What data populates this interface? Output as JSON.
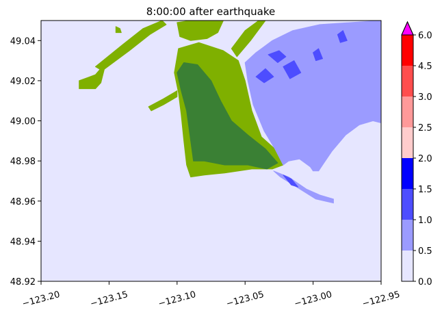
{
  "chart_data": {
    "type": "heatmap",
    "title": "8:00:00 after earthquake",
    "xlabel": "",
    "ylabel": "",
    "xlim": [
      -123.2,
      -122.95
    ],
    "ylim": [
      48.92,
      49.05
    ],
    "x_ticks": [
      {
        "value": -123.2,
        "label": "−123.20"
      },
      {
        "value": -123.15,
        "label": "−123.15"
      },
      {
        "value": -123.1,
        "label": "−123.10"
      },
      {
        "value": -123.05,
        "label": "−123.05"
      },
      {
        "value": -123.0,
        "label": "−123.00"
      },
      {
        "value": -122.95,
        "label": "−122.95"
      }
    ],
    "y_ticks": [
      {
        "value": 48.92,
        "label": "48.92"
      },
      {
        "value": 48.94,
        "label": "48.94"
      },
      {
        "value": 48.96,
        "label": "48.96"
      },
      {
        "value": 48.98,
        "label": "48.98"
      },
      {
        "value": 49.0,
        "label": "49.00"
      },
      {
        "value": 49.02,
        "label": "49.02"
      },
      {
        "value": 49.04,
        "label": "49.04"
      }
    ],
    "colorbar": {
      "levels": [
        0.0,
        0.5,
        1.0,
        1.5,
        2.0,
        2.5,
        3.0,
        4.5,
        6.0
      ],
      "level_labels": [
        "0.0",
        "0.5",
        "1.0",
        "1.5",
        "2.0",
        "2.5",
        "3.0",
        "4.5",
        "6.0"
      ],
      "colors": [
        "#e6e6ff",
        "#9b9bff",
        "#4d4dff",
        "#0000ff",
        "#ffcccc",
        "#ff9999",
        "#ff4d4d",
        "#ff0000"
      ],
      "extend_max_color": "#ff00ff"
    },
    "background_color": "#e6e6ff",
    "land_colors": {
      "low": "#7fb000",
      "high": "#3a8034"
    },
    "regions": [
      {
        "kind": "wet_land_outer",
        "color": "#7fb000",
        "polygon": [
          [
            -123.099,
            49.036
          ],
          [
            -123.084,
            49.039
          ],
          [
            -123.066,
            49.035
          ],
          [
            -123.055,
            49.03
          ],
          [
            -123.05,
            49.02
          ],
          [
            -123.045,
            49.005
          ],
          [
            -123.038,
            48.992
          ],
          [
            -123.028,
            48.986
          ],
          [
            -123.022,
            48.978
          ],
          [
            -123.03,
            48.976
          ],
          [
            -123.045,
            48.976
          ],
          [
            -123.065,
            48.974
          ],
          [
            -123.08,
            48.973
          ],
          [
            -123.09,
            48.972
          ],
          [
            -123.093,
            48.978
          ],
          [
            -123.095,
            48.99
          ],
          [
            -123.097,
            49.003
          ],
          [
            -123.099,
            49.014
          ],
          [
            -123.102,
            49.024
          ]
        ]
      },
      {
        "kind": "deep_inundation",
        "color": "#3a8034",
        "polygon": [
          [
            -123.1,
            49.024
          ],
          [
            -123.095,
            49.029
          ],
          [
            -123.085,
            49.028
          ],
          [
            -123.075,
            49.02
          ],
          [
            -123.068,
            49.01
          ],
          [
            -123.06,
            49.0
          ],
          [
            -123.048,
            48.993
          ],
          [
            -123.035,
            48.986
          ],
          [
            -123.026,
            48.979
          ],
          [
            -123.034,
            48.976
          ],
          [
            -123.048,
            48.978
          ],
          [
            -123.065,
            48.978
          ],
          [
            -123.08,
            48.98
          ],
          [
            -123.088,
            48.98
          ],
          [
            -123.09,
            48.99
          ],
          [
            -123.093,
            49.005
          ],
          [
            -123.097,
            49.015
          ]
        ]
      },
      {
        "kind": "shallow_water_east",
        "color": "#9b9bff",
        "polygon": [
          [
            -123.05,
            49.029
          ],
          [
            -123.042,
            49.034
          ],
          [
            -123.03,
            49.04
          ],
          [
            -123.015,
            49.045
          ],
          [
            -122.995,
            49.048
          ],
          [
            -122.95,
            49.05
          ],
          [
            -122.95,
            48.999
          ],
          [
            -122.956,
            49.0
          ],
          [
            -122.966,
            48.998
          ],
          [
            -122.976,
            48.993
          ],
          [
            -122.986,
            48.985
          ],
          [
            -122.993,
            48.978
          ],
          [
            -122.996,
            48.975
          ],
          [
            -123.0,
            48.975
          ],
          [
            -123.002,
            48.977
          ],
          [
            -123.01,
            48.981
          ],
          [
            -123.018,
            48.98
          ],
          [
            -123.022,
            48.978
          ],
          [
            -123.028,
            48.986
          ],
          [
            -123.036,
            48.995
          ],
          [
            -123.044,
            49.008
          ],
          [
            -123.048,
            49.02
          ]
        ]
      },
      {
        "kind": "shallow_water_east",
        "color": "#9b9bff",
        "polygon": [
          [
            -123.029,
            48.975
          ],
          [
            -123.018,
            48.972
          ],
          [
            -123.005,
            48.966
          ],
          [
            -122.995,
            48.963
          ],
          [
            -122.985,
            48.961
          ],
          [
            -122.985,
            48.959
          ],
          [
            -122.998,
            48.961
          ],
          [
            -123.012,
            48.967
          ],
          [
            -123.024,
            48.972
          ]
        ]
      },
      {
        "kind": "medium_water_spot",
        "color": "#4d4dff",
        "polygon": [
          [
            -123.033,
            49.033
          ],
          [
            -123.025,
            49.035
          ],
          [
            -123.02,
            49.032
          ],
          [
            -123.026,
            49.029
          ]
        ]
      },
      {
        "kind": "medium_water_spot",
        "color": "#4d4dff",
        "polygon": [
          [
            -123.042,
            49.022
          ],
          [
            -123.035,
            49.026
          ],
          [
            -123.029,
            49.022
          ],
          [
            -123.036,
            49.019
          ]
        ]
      },
      {
        "kind": "medium_water_spot",
        "color": "#4d4dff",
        "polygon": [
          [
            -123.022,
            49.027
          ],
          [
            -123.014,
            49.03
          ],
          [
            -123.009,
            49.024
          ],
          [
            -123.017,
            49.021
          ]
        ]
      },
      {
        "kind": "medium_water_spot",
        "color": "#4d4dff",
        "polygon": [
          [
            -123.0,
            49.034
          ],
          [
            -122.996,
            49.036
          ],
          [
            -122.993,
            49.031
          ],
          [
            -122.998,
            49.03
          ]
        ]
      },
      {
        "kind": "medium_water_spot",
        "color": "#4d4dff",
        "polygon": [
          [
            -122.982,
            49.043
          ],
          [
            -122.978,
            49.045
          ],
          [
            -122.975,
            49.04
          ],
          [
            -122.98,
            49.039
          ]
        ]
      },
      {
        "kind": "medium_water_spot",
        "color": "#4d4dff",
        "polygon": [
          [
            -123.022,
            48.973
          ],
          [
            -123.016,
            48.971
          ],
          [
            -123.011,
            48.967
          ],
          [
            -123.016,
            48.968
          ]
        ]
      },
      {
        "kind": "wet_land_island",
        "color": "#7fb000",
        "polygon": [
          [
            -123.172,
            49.02
          ],
          [
            -123.16,
            49.023
          ],
          [
            -123.155,
            49.027
          ],
          [
            -123.151,
            49.031
          ],
          [
            -123.153,
            49.027
          ],
          [
            -123.156,
            49.019
          ],
          [
            -123.16,
            49.016
          ],
          [
            -123.172,
            49.016
          ]
        ]
      },
      {
        "kind": "wet_land_strip",
        "color": "#7fb000",
        "polygon": [
          [
            -123.1,
            49.049
          ],
          [
            -123.09,
            49.05
          ],
          [
            -123.08,
            49.05
          ],
          [
            -123.066,
            49.05
          ],
          [
            -123.07,
            49.044
          ],
          [
            -123.078,
            49.041
          ],
          [
            -123.09,
            49.04
          ],
          [
            -123.098,
            49.042
          ]
        ]
      },
      {
        "kind": "wet_land_strip",
        "color": "#7fb000",
        "polygon": [
          [
            -123.16,
            49.027
          ],
          [
            -123.14,
            49.038
          ],
          [
            -123.125,
            49.046
          ],
          [
            -123.111,
            49.05
          ],
          [
            -123.108,
            49.048
          ],
          [
            -123.12,
            49.043
          ],
          [
            -123.135,
            49.035
          ],
          [
            -123.155,
            49.025
          ]
        ]
      },
      {
        "kind": "wet_land_strip",
        "color": "#7fb000",
        "polygon": [
          [
            -123.1,
            49.015
          ],
          [
            -123.11,
            49.011
          ],
          [
            -123.121,
            49.007
          ],
          [
            -123.119,
            49.005
          ],
          [
            -123.11,
            49.008
          ],
          [
            -123.1,
            49.012
          ]
        ]
      },
      {
        "kind": "wet_land_strip",
        "color": "#7fb000",
        "polygon": [
          [
            -123.06,
            49.036
          ],
          [
            -123.05,
            49.045
          ],
          [
            -123.04,
            49.05
          ],
          [
            -123.035,
            49.05
          ],
          [
            -123.046,
            49.04
          ],
          [
            -123.056,
            49.032
          ]
        ]
      },
      {
        "kind": "wet_land_spot",
        "color": "#7fb000",
        "polygon": [
          [
            -123.145,
            49.047
          ],
          [
            -123.142,
            49.046
          ],
          [
            -123.141,
            49.044
          ],
          [
            -123.145,
            49.044
          ]
        ]
      }
    ]
  }
}
